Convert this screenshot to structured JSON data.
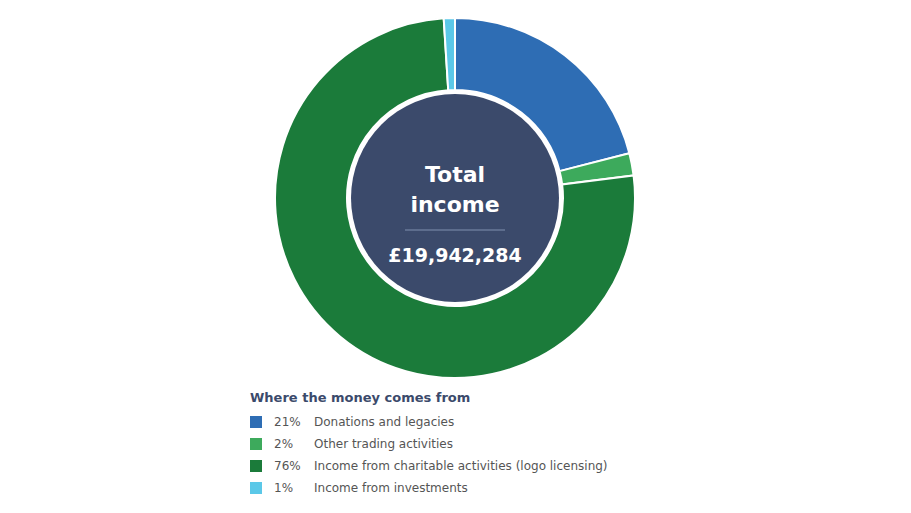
{
  "chart_data": {
    "type": "pie",
    "annotations": [
      "Total",
      "income",
      "£19,942,284"
    ],
    "legend_title": "Where the money comes from",
    "categories": [
      "Donations and legacies",
      "Other trading activities",
      "Income from charitable activities (logo licensing)",
      "Income from investments"
    ],
    "values": [
      21,
      2,
      76,
      1
    ],
    "value_labels": [
      "21%",
      "2%",
      "76%",
      "1%"
    ],
    "colors": [
      "#2E6DB4",
      "#3DAA5C",
      "#1B7B3A",
      "#5BC8E8"
    ],
    "legend": "bottom"
  }
}
